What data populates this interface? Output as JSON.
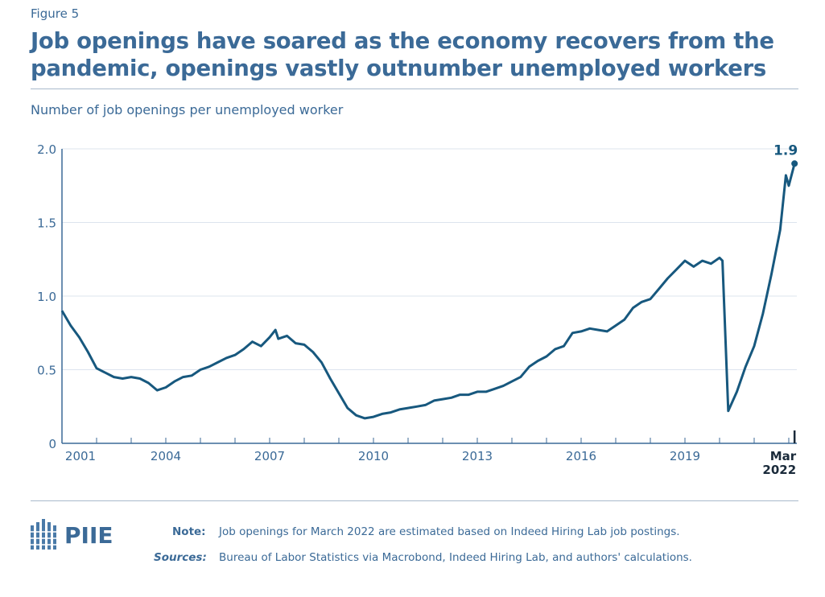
{
  "figure_label": "Figure 5",
  "title": "Job openings have soared as the economy recovers from the pandemic, openings vastly outnumber unemployed workers",
  "chart_data": {
    "type": "line",
    "title": "",
    "ylabel": "Number of job openings per unemployed worker",
    "ylim": [
      0,
      2.0
    ],
    "yticks": [
      "0",
      "0.5",
      "1.0",
      "1.5",
      "2.0"
    ],
    "xticks": [
      "2001",
      "2004",
      "2007",
      "2010",
      "2013",
      "2016",
      "2019"
    ],
    "xlast_label": [
      "Mar",
      "2022"
    ],
    "grid": true,
    "end_label": "1.9",
    "line_color": "#17587e",
    "series": [
      {
        "x": [
          "2001-01",
          "2001-04",
          "2001-07",
          "2001-10",
          "2002-01",
          "2002-04",
          "2002-07",
          "2002-10",
          "2003-01",
          "2003-04",
          "2003-07",
          "2003-10",
          "2004-01",
          "2004-04",
          "2004-07",
          "2004-10",
          "2005-01",
          "2005-04",
          "2005-07",
          "2005-10",
          "2006-01",
          "2006-04",
          "2006-07",
          "2006-10",
          "2007-01",
          "2007-03",
          "2007-04",
          "2007-07",
          "2007-10",
          "2008-01",
          "2008-04",
          "2008-07",
          "2008-10",
          "2009-01",
          "2009-04",
          "2009-07",
          "2009-10",
          "2010-01",
          "2010-04",
          "2010-07",
          "2010-10",
          "2011-01",
          "2011-04",
          "2011-07",
          "2011-10",
          "2012-01",
          "2012-04",
          "2012-07",
          "2012-10",
          "2013-01",
          "2013-04",
          "2013-07",
          "2013-10",
          "2014-01",
          "2014-04",
          "2014-07",
          "2014-10",
          "2015-01",
          "2015-04",
          "2015-07",
          "2015-10",
          "2016-01",
          "2016-04",
          "2016-07",
          "2016-10",
          "2017-01",
          "2017-04",
          "2017-07",
          "2017-10",
          "2018-01",
          "2018-04",
          "2018-07",
          "2018-10",
          "2019-01",
          "2019-04",
          "2019-07",
          "2019-10",
          "2020-01",
          "2020-02",
          "2020-04",
          "2020-07",
          "2020-10",
          "2021-01",
          "2021-04",
          "2021-07",
          "2021-10",
          "2021-12",
          "2022-01",
          "2022-03"
        ],
        "values": [
          0.9,
          0.8,
          0.72,
          0.62,
          0.51,
          0.48,
          0.45,
          0.44,
          0.45,
          0.44,
          0.41,
          0.36,
          0.38,
          0.42,
          0.45,
          0.46,
          0.5,
          0.52,
          0.55,
          0.58,
          0.6,
          0.64,
          0.69,
          0.66,
          0.72,
          0.77,
          0.71,
          0.73,
          0.68,
          0.67,
          0.62,
          0.55,
          0.44,
          0.34,
          0.24,
          0.19,
          0.17,
          0.18,
          0.2,
          0.21,
          0.23,
          0.24,
          0.25,
          0.26,
          0.29,
          0.3,
          0.31,
          0.33,
          0.33,
          0.35,
          0.35,
          0.37,
          0.39,
          0.42,
          0.45,
          0.52,
          0.56,
          0.59,
          0.64,
          0.66,
          0.75,
          0.76,
          0.78,
          0.77,
          0.76,
          0.8,
          0.84,
          0.92,
          0.96,
          0.98,
          1.05,
          1.12,
          1.18,
          1.24,
          1.2,
          1.24,
          1.22,
          1.26,
          1.24,
          0.22,
          0.35,
          0.52,
          0.66,
          0.88,
          1.15,
          1.45,
          1.82,
          1.75,
          1.9
        ]
      }
    ]
  },
  "footer": {
    "logo_text": "PIIE",
    "note_label": "Note:",
    "note_text": "Job openings for March 2022 are estimated based on Indeed Hiring Lab job postings.",
    "sources_label": "Sources:",
    "sources_text": "Bureau of Labor Statistics via Macrobond, Indeed Hiring Lab, and authors' calculations."
  }
}
